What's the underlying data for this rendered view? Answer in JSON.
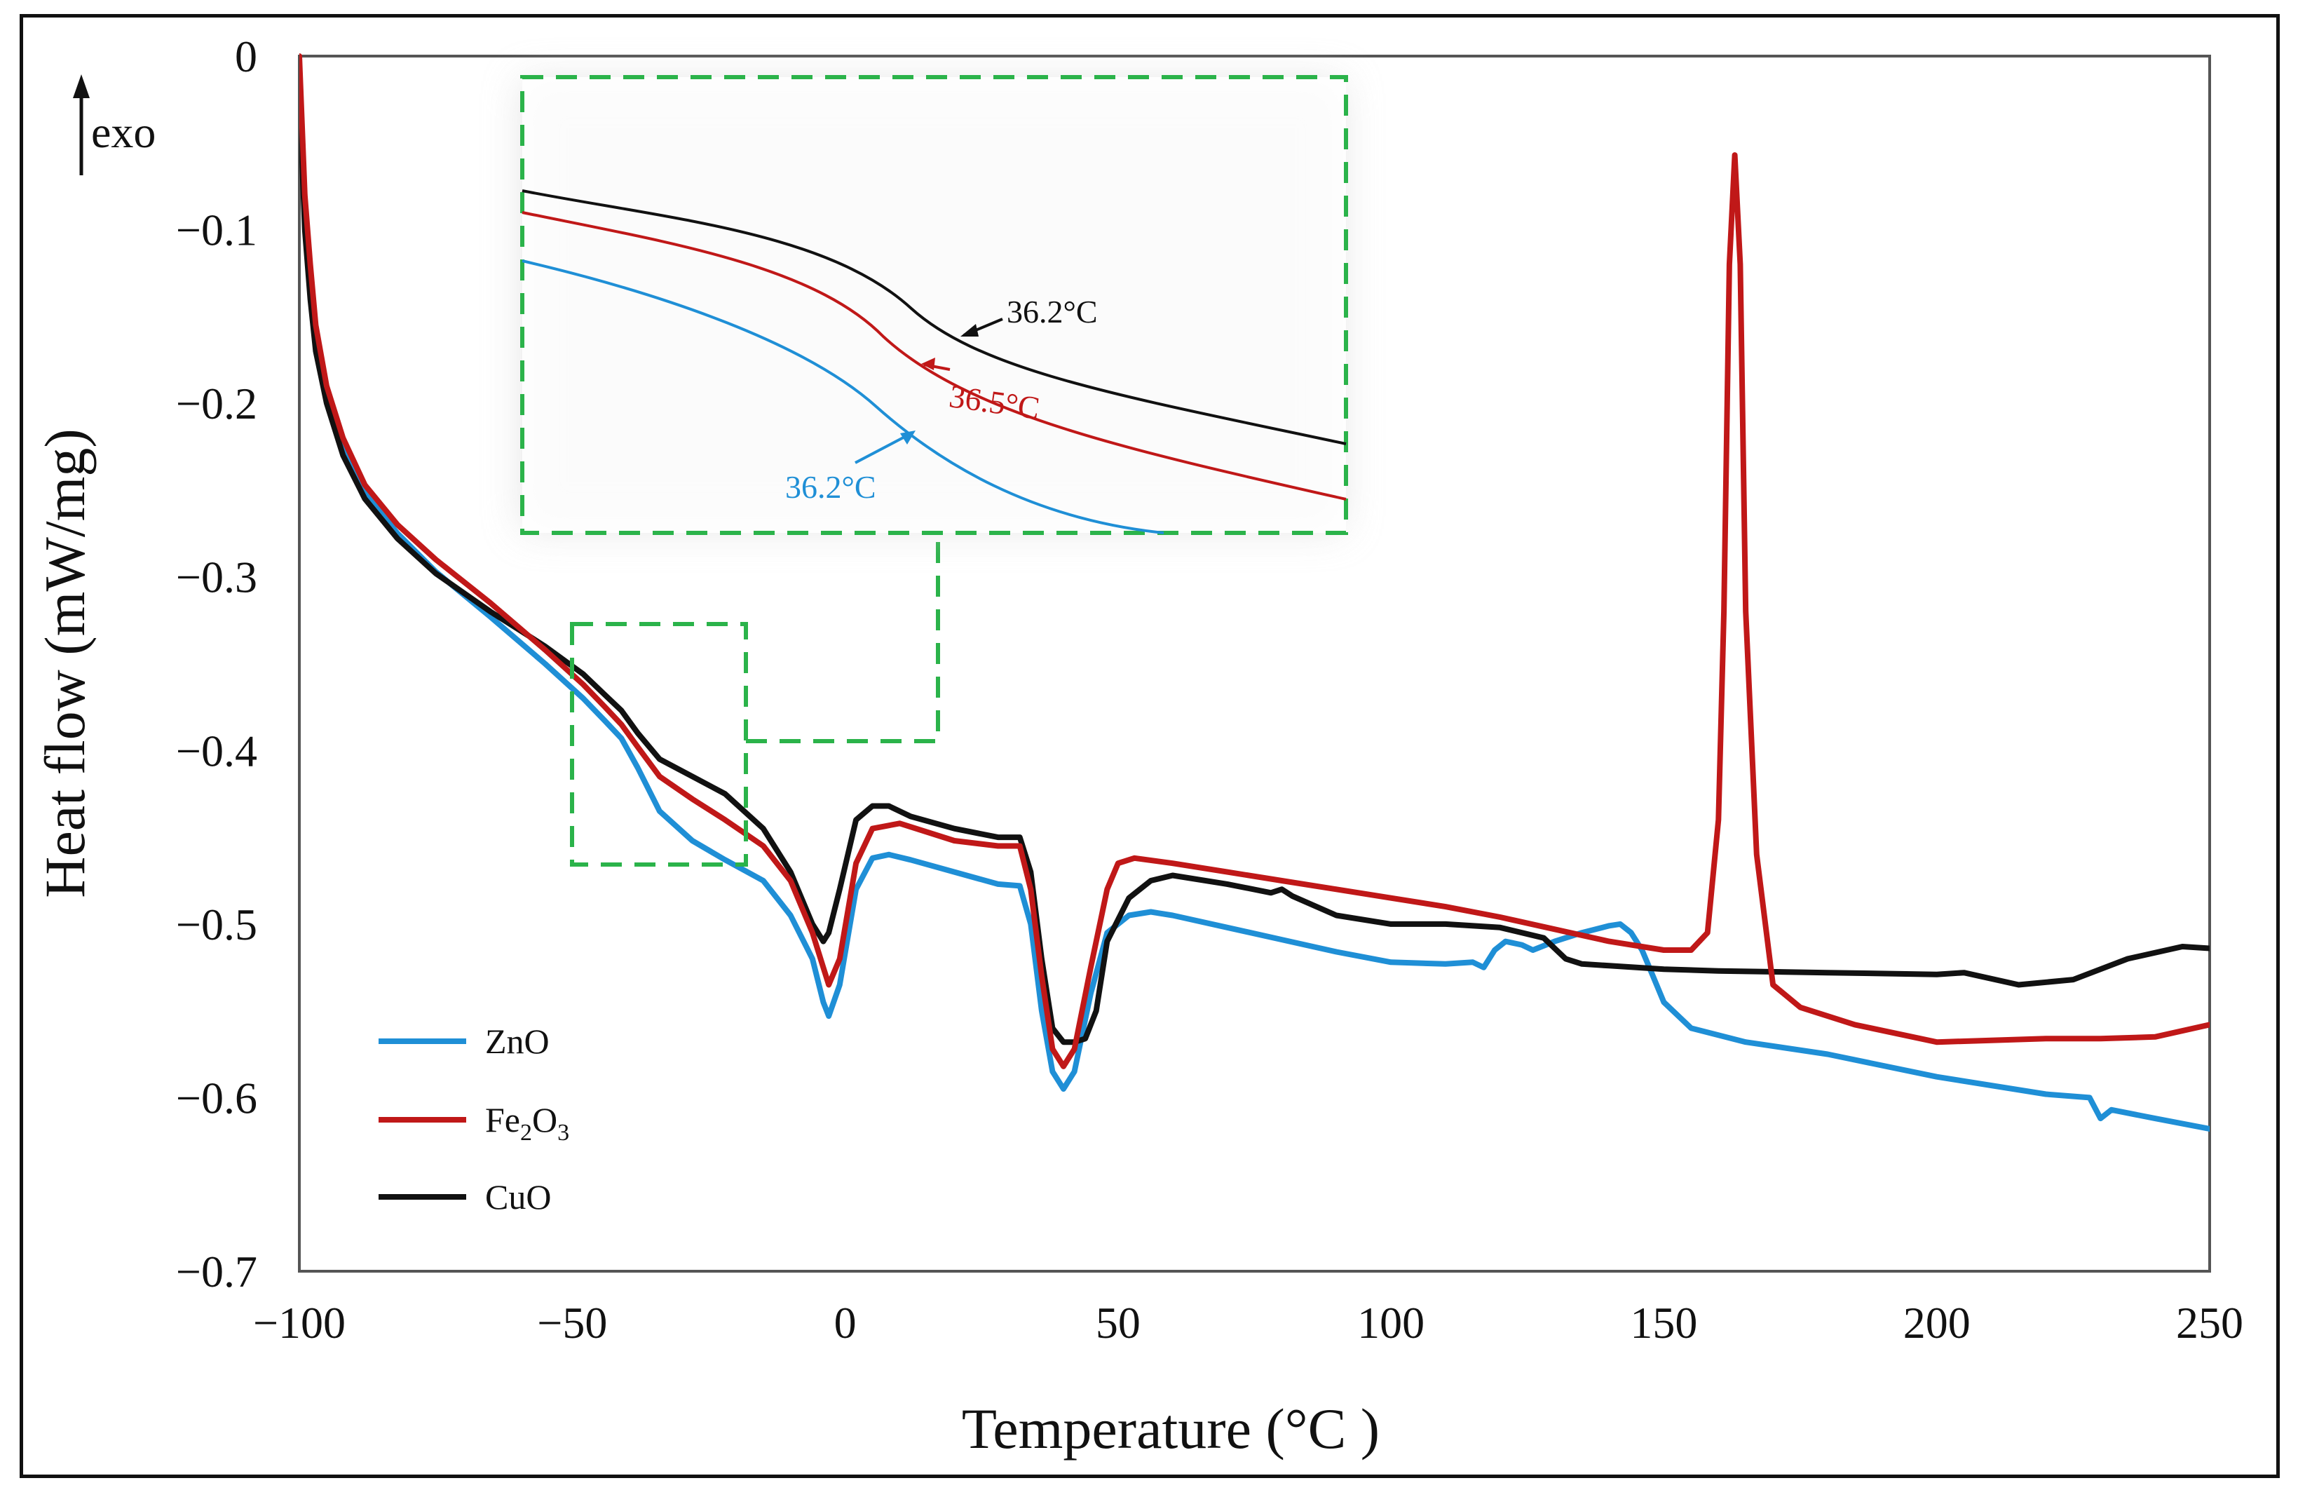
{
  "chart_data": {
    "type": "line",
    "xlabel": "Temperature (°C )",
    "ylabel": "Heat flow (mW/mg)",
    "exo_label": "exo",
    "xlim": [
      -100,
      250
    ],
    "ylim": [
      -0.7,
      0
    ],
    "x_ticks": [
      "−100",
      "−50",
      "0",
      "50",
      "100",
      "150",
      "200",
      "250"
    ],
    "x_tick_values": [
      -100,
      -50,
      0,
      50,
      100,
      150,
      200,
      250
    ],
    "y_ticks": [
      "0",
      "−0.1",
      "−0.2",
      "−0.3",
      "−0.4",
      "−0.5",
      "−0.6",
      "−0.7"
    ],
    "y_tick_values": [
      0,
      -0.1,
      -0.2,
      -0.3,
      -0.4,
      -0.5,
      -0.6,
      -0.7
    ],
    "legend": {
      "position": "bottom-left",
      "entries": [
        {
          "name": "ZnO",
          "name_base": "ZnO",
          "color": "#1f8fd6"
        },
        {
          "name": "Fe2O3",
          "name_base": "Fe",
          "sub1": "2",
          "name_mid": "O",
          "sub2": "3",
          "color": "#c01818"
        },
        {
          "name": "CuO",
          "name_base": "CuO",
          "color": "#111111"
        }
      ]
    },
    "series": [
      {
        "name": "ZnO",
        "color": "#1f8fd6",
        "x": [
          -100,
          -99,
          -98,
          -97,
          -95,
          -92,
          -88,
          -82,
          -75,
          -65,
          -55,
          -48,
          -44,
          -41,
          -38,
          -34,
          -28,
          -22,
          -15,
          -10,
          -6,
          -4,
          -3,
          -1,
          2,
          5,
          8,
          12,
          20,
          28,
          32,
          34,
          36,
          38,
          40,
          42,
          45,
          48,
          52,
          56,
          60,
          70,
          80,
          90,
          100,
          110,
          115,
          117,
          119,
          121,
          124,
          126,
          130,
          135,
          140,
          142,
          144,
          146,
          148,
          150,
          155,
          165,
          180,
          200,
          220,
          228,
          230,
          232,
          240,
          250
        ],
        "y": [
          -0.02,
          -0.09,
          -0.13,
          -0.16,
          -0.195,
          -0.225,
          -0.252,
          -0.275,
          -0.297,
          -0.323,
          -0.35,
          -0.37,
          -0.383,
          -0.393,
          -0.41,
          -0.435,
          -0.452,
          -0.463,
          -0.475,
          -0.495,
          -0.52,
          -0.545,
          -0.553,
          -0.535,
          -0.48,
          -0.462,
          -0.46,
          -0.463,
          -0.47,
          -0.477,
          -0.478,
          -0.5,
          -0.55,
          -0.585,
          -0.595,
          -0.585,
          -0.54,
          -0.505,
          -0.495,
          -0.493,
          -0.495,
          -0.502,
          -0.509,
          -0.516,
          -0.522,
          -0.523,
          -0.522,
          -0.525,
          -0.515,
          -0.51,
          -0.512,
          -0.515,
          -0.51,
          -0.505,
          -0.501,
          -0.5,
          -0.505,
          -0.515,
          -0.53,
          -0.545,
          -0.56,
          -0.568,
          -0.575,
          -0.588,
          -0.598,
          -0.6,
          -0.612,
          -0.607,
          -0.612,
          -0.618
        ]
      },
      {
        "name": "Fe2O3",
        "color": "#c01818",
        "x": [
          -100,
          -99,
          -98,
          -97,
          -95,
          -92,
          -88,
          -82,
          -75,
          -65,
          -55,
          -48,
          -44,
          -41,
          -38,
          -34,
          -28,
          -22,
          -15,
          -10,
          -6,
          -4,
          -3,
          -1,
          2,
          5,
          10,
          20,
          28,
          32,
          34,
          36,
          38,
          40,
          42,
          45,
          48,
          50,
          53,
          60,
          70,
          80,
          90,
          100,
          110,
          120,
          130,
          140,
          150,
          155,
          158,
          160,
          161,
          162,
          163,
          164,
          165,
          167,
          170,
          175,
          185,
          200,
          210,
          220,
          230,
          240,
          250
        ],
        "y": [
          0,
          -0.08,
          -0.12,
          -0.155,
          -0.19,
          -0.22,
          -0.247,
          -0.27,
          -0.29,
          -0.315,
          -0.342,
          -0.362,
          -0.375,
          -0.385,
          -0.398,
          -0.415,
          -0.428,
          -0.44,
          -0.455,
          -0.475,
          -0.505,
          -0.525,
          -0.535,
          -0.52,
          -0.465,
          -0.445,
          -0.442,
          -0.452,
          -0.455,
          -0.455,
          -0.48,
          -0.53,
          -0.572,
          -0.582,
          -0.572,
          -0.525,
          -0.48,
          -0.465,
          -0.462,
          -0.465,
          -0.47,
          -0.475,
          -0.48,
          -0.485,
          -0.49,
          -0.496,
          -0.503,
          -0.51,
          -0.515,
          -0.515,
          -0.505,
          -0.44,
          -0.32,
          -0.12,
          -0.057,
          -0.12,
          -0.32,
          -0.46,
          -0.535,
          -0.548,
          -0.558,
          -0.568,
          -0.567,
          -0.566,
          -0.566,
          -0.565,
          -0.558
        ]
      },
      {
        "name": "CuO",
        "color": "#111111",
        "x": [
          -100,
          -99,
          -98,
          -97,
          -95,
          -92,
          -88,
          -82,
          -75,
          -65,
          -55,
          -48,
          -44,
          -41,
          -38,
          -34,
          -28,
          -22,
          -15,
          -10,
          -6,
          -4,
          -3,
          -1,
          2,
          5,
          8,
          12,
          20,
          28,
          32,
          34,
          36,
          38,
          40,
          42,
          44,
          46,
          48,
          52,
          56,
          60,
          70,
          78,
          80,
          82,
          90,
          100,
          110,
          120,
          128,
          132,
          135,
          140,
          150,
          160,
          180,
          200,
          205,
          215,
          225,
          235,
          245,
          250
        ],
        "y": [
          -0.02,
          -0.1,
          -0.14,
          -0.17,
          -0.2,
          -0.23,
          -0.255,
          -0.278,
          -0.298,
          -0.32,
          -0.34,
          -0.356,
          -0.368,
          -0.377,
          -0.39,
          -0.405,
          -0.415,
          -0.425,
          -0.445,
          -0.47,
          -0.5,
          -0.51,
          -0.505,
          -0.48,
          -0.44,
          -0.432,
          -0.432,
          -0.438,
          -0.445,
          -0.45,
          -0.45,
          -0.47,
          -0.52,
          -0.56,
          -0.568,
          -0.568,
          -0.566,
          -0.55,
          -0.51,
          -0.485,
          -0.475,
          -0.472,
          -0.477,
          -0.482,
          -0.48,
          -0.484,
          -0.495,
          -0.5,
          -0.5,
          -0.502,
          -0.508,
          -0.52,
          -0.523,
          -0.524,
          -0.526,
          -0.527,
          -0.528,
          -0.529,
          -0.528,
          -0.535,
          -0.532,
          -0.52,
          -0.513,
          -0.514
        ]
      }
    ],
    "annotations": [
      {
        "id": "cuo",
        "text": "36.2°C",
        "color": "#111111"
      },
      {
        "id": "fe",
        "text": "36.5°C",
        "color": "#c01818"
      },
      {
        "id": "zno",
        "text": "36.2°C",
        "color": "#1f8fd6"
      }
    ]
  }
}
